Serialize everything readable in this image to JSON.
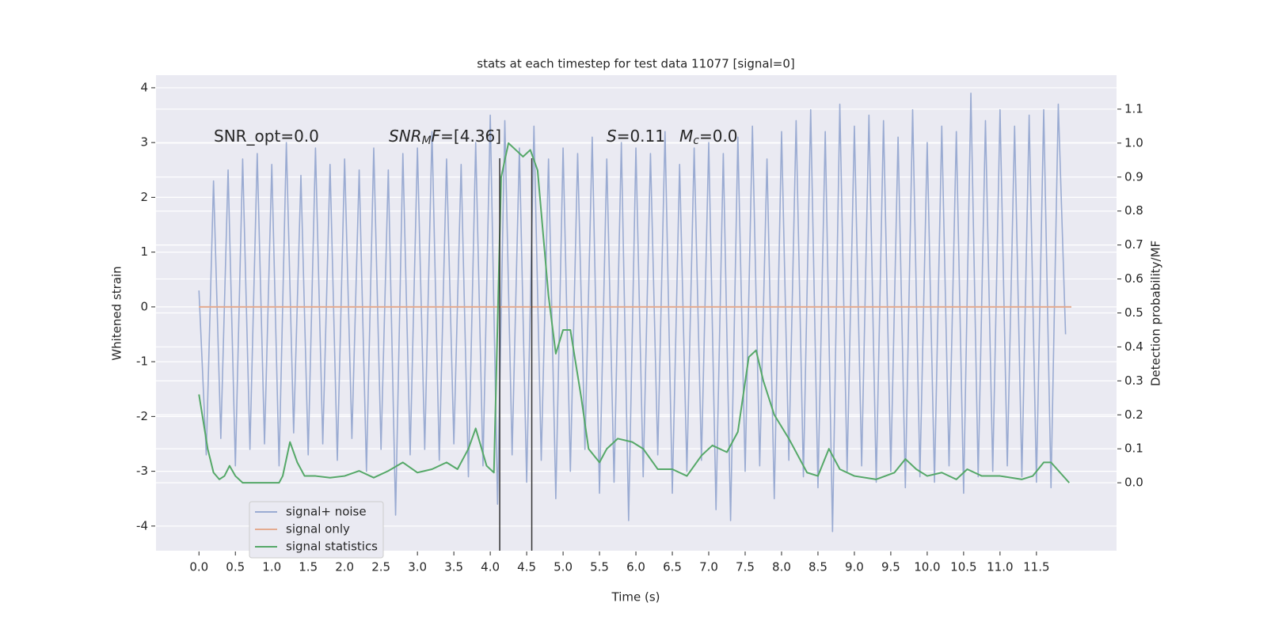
{
  "chart_data": {
    "type": "line",
    "title": "stats at each timestep for test data 11077 [signal=0]",
    "xlabel": "Time (s)",
    "ylabel": "Whitened strain",
    "y2label": "Detection probability/MF",
    "xlim": [
      -0.59,
      12.6
    ],
    "ylim": [
      -4.45,
      4.23
    ],
    "y2lim": [
      -0.2,
      1.2
    ],
    "xticks": [
      {
        "value": 0,
        "label": "0.0"
      },
      {
        "value": 0.5,
        "label": "0.5"
      },
      {
        "value": 1,
        "label": "1.0"
      },
      {
        "value": 1.5,
        "label": "1.5"
      },
      {
        "value": 2,
        "label": "2.0"
      },
      {
        "value": 2.5,
        "label": "2.5"
      },
      {
        "value": 3,
        "label": "3.0"
      },
      {
        "value": 3.5,
        "label": "3.5"
      },
      {
        "value": 4,
        "label": "4.0"
      },
      {
        "value": 4.5,
        "label": "4.5"
      },
      {
        "value": 5,
        "label": "5.0"
      },
      {
        "value": 5.5,
        "label": "5.5"
      },
      {
        "value": 6,
        "label": "6.0"
      },
      {
        "value": 6.5,
        "label": "6.5"
      },
      {
        "value": 7,
        "label": "7.0"
      },
      {
        "value": 7.5,
        "label": "7.5"
      },
      {
        "value": 8,
        "label": "8.0"
      },
      {
        "value": 8.5,
        "label": "8.5"
      },
      {
        "value": 9,
        "label": "9.0"
      },
      {
        "value": 9.5,
        "label": "9.5"
      },
      {
        "value": 10,
        "label": "10.0"
      },
      {
        "value": 10.5,
        "label": "10.5"
      },
      {
        "value": 11,
        "label": "11.0"
      },
      {
        "value": 11.5,
        "label": "11.5"
      }
    ],
    "yticks": [
      -4,
      -3,
      -2,
      -1,
      0,
      1,
      2,
      3,
      4
    ],
    "y2ticks": [
      {
        "value": 0,
        "label": "0.0"
      },
      {
        "value": 0.1,
        "label": "0.1"
      },
      {
        "value": 0.2,
        "label": "0.2"
      },
      {
        "value": 0.3,
        "label": "0.3"
      },
      {
        "value": 0.4,
        "label": "0.4"
      },
      {
        "value": 0.5,
        "label": "0.5"
      },
      {
        "value": 0.6,
        "label": "0.6"
      },
      {
        "value": 0.7,
        "label": "0.7"
      },
      {
        "value": 0.8,
        "label": "0.8"
      },
      {
        "value": 0.9,
        "label": "0.9"
      },
      {
        "value": 1,
        "label": "1.0"
      },
      {
        "value": 1.1,
        "label": "1.1"
      }
    ],
    "grid": "y",
    "legend": "lower left",
    "series": [
      {
        "name": "signal+ noise",
        "color": "#9aabd2",
        "x": [
          0,
          0.1,
          0.2,
          0.3,
          0.4,
          0.5,
          0.6,
          0.7,
          0.8,
          0.9,
          1,
          1.1,
          1.2,
          1.3,
          1.4,
          1.5,
          1.6,
          1.7,
          1.8,
          1.9,
          2,
          2.1,
          2.2,
          2.3,
          2.4,
          2.5,
          2.6,
          2.7,
          2.8,
          2.9,
          3,
          3.1,
          3.2,
          3.3,
          3.4,
          3.5,
          3.6,
          3.7,
          3.8,
          3.9,
          4,
          4.1,
          4.2,
          4.3,
          4.4,
          4.5,
          4.6,
          4.7,
          4.8,
          4.9,
          5,
          5.1,
          5.2,
          5.3,
          5.4,
          5.5,
          5.6,
          5.7,
          5.8,
          5.9,
          6,
          6.1,
          6.2,
          6.3,
          6.4,
          6.5,
          6.6,
          6.7,
          6.8,
          6.9,
          7,
          7.1,
          7.2,
          7.3,
          7.4,
          7.5,
          7.6,
          7.7,
          7.8,
          7.9,
          8,
          8.1,
          8.2,
          8.3,
          8.4,
          8.5,
          8.6,
          8.7,
          8.8,
          8.9,
          9,
          9.1,
          9.2,
          9.3,
          9.4,
          9.5,
          9.6,
          9.7,
          9.8,
          9.9,
          10,
          10.1,
          10.2,
          10.3,
          10.4,
          10.5,
          10.6,
          10.7,
          10.8,
          10.9,
          11,
          11.1,
          11.2,
          11.3,
          11.4,
          11.5,
          11.6,
          11.7,
          11.8,
          11.9
        ],
        "values": [
          0.3,
          -2.7,
          2.3,
          -2.4,
          2.5,
          -2.9,
          2.7,
          -2.6,
          2.8,
          -2.5,
          2.6,
          -2.9,
          3.0,
          -2.3,
          2.4,
          -2.7,
          2.9,
          -2.5,
          2.6,
          -2.8,
          2.7,
          -2.4,
          2.5,
          -3.0,
          2.9,
          -2.6,
          2.5,
          -3.8,
          2.8,
          -2.7,
          2.9,
          -2.6,
          3.2,
          -2.8,
          2.7,
          -2.5,
          2.6,
          -3.1,
          3.0,
          -2.9,
          3.5,
          -3.6,
          3.4,
          -2.7,
          2.9,
          -3.2,
          3.3,
          -2.8,
          2.7,
          -3.5,
          2.9,
          -3.0,
          2.8,
          -2.6,
          3.1,
          -3.4,
          2.7,
          -3.2,
          3.0,
          -3.9,
          2.9,
          -3.1,
          2.8,
          -2.7,
          3.2,
          -3.4,
          2.6,
          -3.0,
          2.9,
          -2.8,
          3.0,
          -3.7,
          2.8,
          -3.9,
          3.1,
          -3.0,
          3.3,
          -2.9,
          2.7,
          -3.5,
          3.2,
          -2.8,
          3.4,
          -3.1,
          3.6,
          -3.3,
          3.2,
          -4.1,
          3.7,
          -3.0,
          3.3,
          -2.9,
          3.5,
          -3.2,
          3.4,
          -3.0,
          3.1,
          -3.3,
          3.6,
          -3.1,
          3.0,
          -3.2,
          3.3,
          -2.9,
          3.2,
          -3.4,
          3.9,
          -3.1,
          3.4,
          -3.0,
          3.6,
          -2.9,
          3.3,
          -3.1,
          3.5,
          -3.2,
          3.6,
          -3.3,
          3.7,
          -0.5
        ]
      },
      {
        "name": "signal only",
        "color": "#e4ab90",
        "x": [
          0,
          11.98
        ],
        "values": [
          0,
          0
        ]
      },
      {
        "name": "signal statistics",
        "color": "#55a868",
        "axis": "y2",
        "x": [
          0,
          0.12,
          0.2,
          0.28,
          0.35,
          0.42,
          0.5,
          0.6,
          0.8,
          1.0,
          1.1,
          1.15,
          1.25,
          1.35,
          1.45,
          1.6,
          1.8,
          2.0,
          2.2,
          2.4,
          2.6,
          2.8,
          3.0,
          3.2,
          3.4,
          3.55,
          3.7,
          3.8,
          3.95,
          4.05,
          4.15,
          4.25,
          4.35,
          4.45,
          4.55,
          4.65,
          4.8,
          4.9,
          5.0,
          5.1,
          5.25,
          5.35,
          5.5,
          5.6,
          5.75,
          5.95,
          6.1,
          6.3,
          6.5,
          6.7,
          6.9,
          7.05,
          7.25,
          7.4,
          7.55,
          7.65,
          7.75,
          7.9,
          8.1,
          8.35,
          8.5,
          8.65,
          8.8,
          9.0,
          9.3,
          9.55,
          9.7,
          9.85,
          10.0,
          10.2,
          10.4,
          10.55,
          10.75,
          11.0,
          11.3,
          11.45,
          11.6,
          11.7,
          11.95
        ],
        "values": [
          0.26,
          0.1,
          0.03,
          0.01,
          0.02,
          0.05,
          0.02,
          0.0,
          0.0,
          0.0,
          0.0,
          0.02,
          0.12,
          0.06,
          0.02,
          0.02,
          0.015,
          0.02,
          0.035,
          0.015,
          0.035,
          0.06,
          0.03,
          0.04,
          0.06,
          0.04,
          0.1,
          0.16,
          0.05,
          0.03,
          0.9,
          1.0,
          0.98,
          0.96,
          0.98,
          0.92,
          0.55,
          0.38,
          0.45,
          0.45,
          0.25,
          0.1,
          0.06,
          0.1,
          0.13,
          0.12,
          0.1,
          0.04,
          0.04,
          0.02,
          0.08,
          0.11,
          0.09,
          0.15,
          0.37,
          0.39,
          0.3,
          0.2,
          0.13,
          0.03,
          0.02,
          0.1,
          0.04,
          0.02,
          0.01,
          0.03,
          0.07,
          0.04,
          0.02,
          0.03,
          0.01,
          0.04,
          0.02,
          0.02,
          0.01,
          0.02,
          0.06,
          0.06,
          0.0
        ]
      }
    ],
    "vlines": [
      4.13,
      4.57
    ],
    "annotations": [
      [
        {
          "text": "SNR_opt=0.0"
        }
      ],
      [
        {
          "text": "SNR",
          "italic": true
        },
        {
          "text": "M",
          "italic": true,
          "sub": true
        },
        {
          "text": "F",
          "italic": true
        },
        {
          "text": "=[4.36]"
        }
      ],
      [
        {
          "text": "S",
          "italic": true
        },
        {
          "text": "=0.11"
        }
      ],
      [
        {
          "text": "M",
          "italic": true
        },
        {
          "text": "c",
          "italic": true,
          "sub": true
        },
        {
          "text": "=0.0"
        }
      ]
    ]
  }
}
